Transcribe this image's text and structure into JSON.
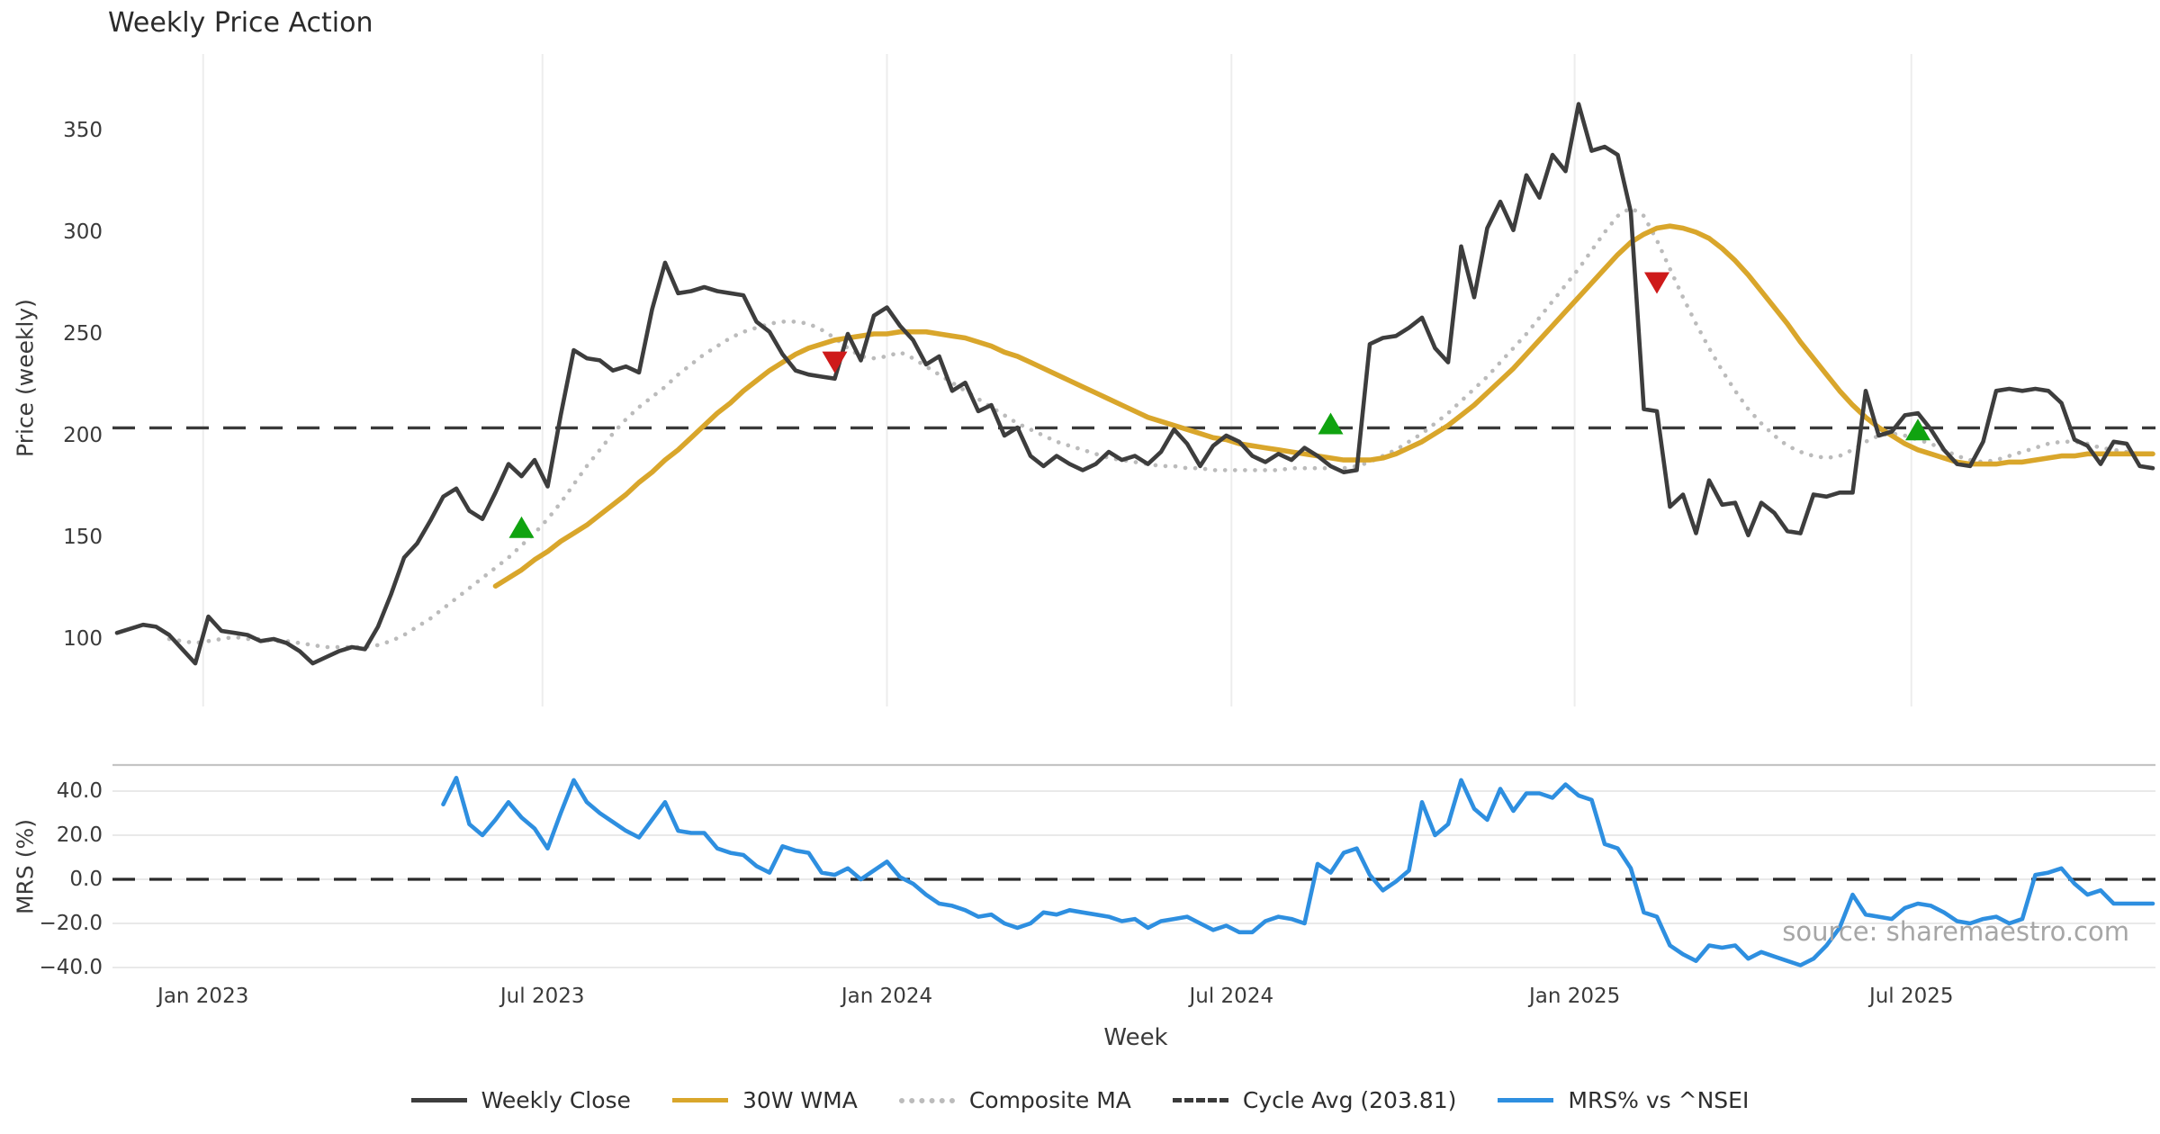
{
  "title": "Weekly Price Action",
  "watermark": "source: sharemaestro.com",
  "axes": {
    "x_label": "Week",
    "price_ylabel": "Price (weekly)",
    "mrs_ylabel": "MRS (%)",
    "x_ticks": [
      {
        "label": "Jan 2023",
        "week": 6.6
      },
      {
        "label": "Jul 2023",
        "week": 32.6
      },
      {
        "label": "Jan 2024",
        "week": 59.0
      },
      {
        "label": "Jul 2024",
        "week": 85.4
      },
      {
        "label": "Jan 2025",
        "week": 111.7
      },
      {
        "label": "Jul 2025",
        "week": 137.5
      }
    ],
    "price_yticks": [
      {
        "label": "350",
        "value": 350
      },
      {
        "label": "300",
        "value": 300
      },
      {
        "label": "250",
        "value": 250
      },
      {
        "label": "200",
        "value": 200
      },
      {
        "label": "150",
        "value": 150
      },
      {
        "label": "100",
        "value": 100
      }
    ],
    "mrs_yticks": [
      {
        "label": "40.0",
        "value": 40
      },
      {
        "label": "20.0",
        "value": 20
      },
      {
        "label": "0.0",
        "value": 0
      },
      {
        "label": "−20.0",
        "value": -20
      },
      {
        "label": "−40.0",
        "value": -40
      }
    ]
  },
  "colors": {
    "weekly_close": "#3d3d3d",
    "wma_30w": "#d9a62b",
    "composite_ma": "#bbbbbb",
    "cycle_avg": "#3a3a3a",
    "mrs": "#2e8fe0",
    "buy_marker": "#10a310",
    "sell_marker": "#ce1a1a",
    "gridline": "#ededed",
    "panel_spine": "#c4c4c4"
  },
  "legend": {
    "items": [
      {
        "label": "Weekly Close",
        "color": "#3d3d3d",
        "style": "solid"
      },
      {
        "label": "30W WMA",
        "color": "#d9a62b",
        "style": "solid"
      },
      {
        "label": "Composite MA",
        "color": "#bbbbbb",
        "style": "dotted"
      },
      {
        "label": "Cycle Avg (203.81)",
        "color": "#3a3a3a",
        "style": "dashed"
      },
      {
        "label": "MRS% vs ^NSEI",
        "color": "#2e8fe0",
        "style": "solid"
      }
    ]
  },
  "chart_data": [
    {
      "type": "line",
      "panel": "price",
      "title": "Weekly Price Action",
      "xlabel": "Week",
      "ylabel": "Price (weekly)",
      "ylim": [
        67,
        388
      ],
      "x_unit": "weeks since mid-Nov 2022 (weekly data)",
      "cycle_avg": 203.81,
      "grid": "vertical-only",
      "legend_position": "bottom",
      "series": [
        {
          "name": "Weekly Close",
          "start_week": 0,
          "values": [
            103,
            105,
            107,
            106,
            102,
            95,
            88,
            111,
            104,
            103,
            102,
            99,
            100,
            98,
            94,
            88,
            91,
            94,
            96,
            95,
            106,
            122,
            140,
            147,
            158,
            170,
            174,
            163,
            159,
            172,
            186,
            180,
            188,
            175,
            210,
            242,
            238,
            237,
            232,
            234,
            231,
            262,
            285,
            270,
            271,
            273,
            271,
            270,
            269,
            256,
            251,
            240,
            232,
            230,
            229,
            228,
            250,
            237,
            259,
            263,
            254,
            247,
            235,
            239,
            222,
            226,
            212,
            215,
            200,
            204,
            190,
            185,
            190,
            186,
            183,
            186,
            192,
            188,
            190,
            186,
            192,
            203,
            196,
            185,
            195,
            200,
            197,
            190,
            187,
            191,
            188,
            194,
            190,
            185,
            182,
            183,
            245,
            248,
            249,
            253,
            258,
            243,
            236,
            293,
            268,
            302,
            315,
            301,
            328,
            317,
            338,
            330,
            363,
            340,
            342,
            338,
            310,
            213,
            212,
            165,
            171,
            152,
            178,
            166,
            167,
            151,
            167,
            162,
            153,
            152,
            171,
            170,
            172,
            172,
            222,
            200,
            202,
            210,
            211,
            203,
            193,
            186,
            185,
            197,
            222,
            223,
            222,
            223,
            222,
            216,
            198,
            195,
            186,
            197,
            196,
            185,
            184
          ]
        },
        {
          "name": "30W WMA",
          "start_week": 29,
          "values": [
            126,
            130,
            134,
            139,
            143,
            148,
            152,
            156,
            161,
            166,
            171,
            177,
            182,
            188,
            193,
            199,
            205,
            211,
            216,
            222,
            227,
            232,
            236,
            240,
            243,
            245,
            247,
            248,
            249,
            250,
            250,
            251,
            251,
            251,
            250,
            249,
            248,
            246,
            244,
            241,
            239,
            236,
            233,
            230,
            227,
            224,
            221,
            218,
            215,
            212,
            209,
            207,
            205,
            203,
            201,
            199,
            198,
            196,
            195,
            194,
            193,
            192,
            191,
            190,
            189,
            188,
            188,
            188,
            189,
            191,
            194,
            197,
            201,
            205,
            210,
            215,
            221,
            227,
            233,
            240,
            247,
            254,
            261,
            268,
            275,
            282,
            289,
            295,
            299,
            302,
            303,
            302,
            300,
            297,
            292,
            286,
            279,
            271,
            263,
            255,
            246,
            238,
            230,
            222,
            215,
            209,
            204,
            200,
            196,
            193,
            191,
            189,
            187,
            186,
            186,
            186,
            187,
            187,
            188,
            189,
            190,
            190,
            191,
            191,
            191,
            191,
            191,
            191
          ]
        },
        {
          "name": "Composite MA",
          "start_week": 4,
          "values": [
            100,
            99,
            98,
            99,
            100,
            101,
            100,
            100,
            99,
            99,
            98,
            97,
            96,
            96,
            96,
            96,
            97,
            99,
            102,
            106,
            110,
            115,
            120,
            125,
            130,
            135,
            140,
            146,
            152,
            159,
            167,
            176,
            185,
            193,
            201,
            208,
            214,
            219,
            224,
            230,
            235,
            240,
            244,
            248,
            251,
            253,
            255,
            256,
            256,
            255,
            252,
            248,
            243,
            239,
            238,
            239,
            241,
            238,
            234,
            230,
            226,
            222,
            218,
            214,
            210,
            206,
            203,
            200,
            197,
            195,
            193,
            191,
            189,
            188,
            187,
            186,
            185,
            185,
            184,
            184,
            183,
            183,
            183,
            183,
            183,
            183,
            184,
            184,
            184,
            184,
            184,
            185,
            187,
            190,
            193,
            197,
            201,
            206,
            211,
            217,
            223,
            229,
            236,
            243,
            250,
            258,
            266,
            274,
            282,
            291,
            300,
            308,
            312,
            308,
            296,
            282,
            268,
            255,
            243,
            232,
            222,
            213,
            206,
            200,
            195,
            192,
            190,
            189,
            190,
            193,
            197,
            200,
            201,
            200,
            198,
            196,
            193,
            190,
            188,
            187,
            188,
            190,
            192,
            194,
            196,
            197,
            197,
            196,
            194,
            193,
            192,
            191,
            191
          ]
        }
      ],
      "markers": [
        {
          "type": "buy",
          "week": 31,
          "value": 155
        },
        {
          "type": "sell",
          "week": 55,
          "value": 236
        },
        {
          "type": "buy",
          "week": 93,
          "value": 206
        },
        {
          "type": "sell",
          "week": 118,
          "value": 275
        },
        {
          "type": "buy",
          "week": 138,
          "value": 203
        }
      ]
    },
    {
      "type": "line",
      "panel": "mrs",
      "ylabel": "MRS (%)",
      "ylim": [
        -42,
        52
      ],
      "zero_line": 0,
      "grid": "horizontal-only",
      "series": [
        {
          "name": "MRS% vs ^NSEI",
          "start_week": 25,
          "values": [
            34,
            46,
            25,
            20,
            27,
            35,
            28,
            23,
            14,
            30,
            45,
            35,
            30,
            26,
            22,
            19,
            27,
            35,
            22,
            21,
            21,
            14,
            12,
            11,
            6,
            3,
            15,
            13,
            12,
            3,
            2,
            5,
            0,
            4,
            8,
            1,
            -2,
            -7,
            -11,
            -12,
            -14,
            -17,
            -16,
            -20,
            -22,
            -20,
            -15,
            -16,
            -14,
            -15,
            -16,
            -17,
            -19,
            -18,
            -22,
            -19,
            -18,
            -17,
            -20,
            -23,
            -21,
            -24,
            -24,
            -19,
            -17,
            -18,
            -20,
            7,
            3,
            12,
            14,
            2,
            -5,
            -1,
            4,
            35,
            20,
            25,
            45,
            32,
            27,
            41,
            31,
            39,
            39,
            37,
            43,
            38,
            36,
            16,
            14,
            5,
            -15,
            -17,
            -30,
            -34,
            -37,
            -30,
            -31,
            -30,
            -36,
            -33,
            -35,
            -37,
            -39,
            -36,
            -30,
            -22,
            -7,
            -16,
            -17,
            -18,
            -13,
            -11,
            -12,
            -15,
            -19,
            -20,
            -18,
            -17,
            -20,
            -18,
            2,
            3,
            5,
            -2,
            -7,
            -5,
            -11,
            -11,
            -11,
            -11
          ]
        }
      ]
    }
  ]
}
